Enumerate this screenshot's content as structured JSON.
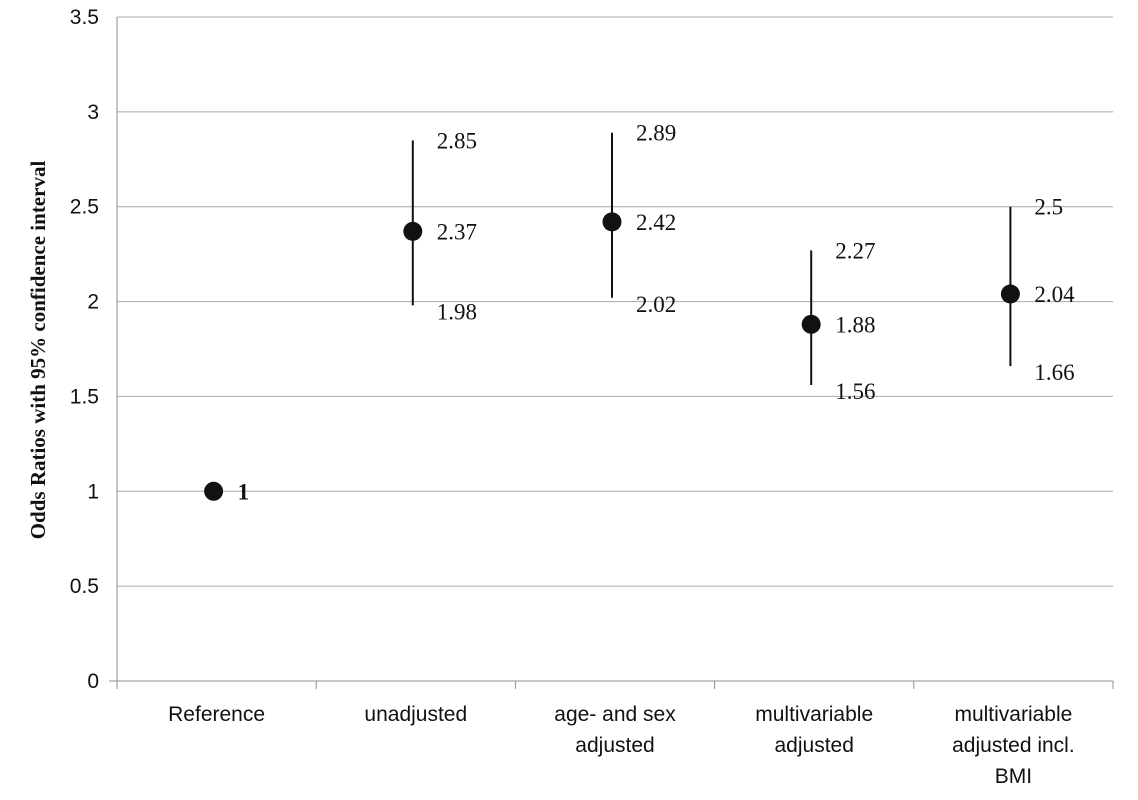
{
  "chart_data": {
    "type": "scatter",
    "ylabel": "Odds Ratios with 95% confidence interval",
    "xlabel": "",
    "ylim": [
      0,
      3.5
    ],
    "yticks": [
      {
        "value": 0,
        "label": "0"
      },
      {
        "value": 0.5,
        "label": "0.5"
      },
      {
        "value": 1,
        "label": "1"
      },
      {
        "value": 1.5,
        "label": "1.5"
      },
      {
        "value": 2,
        "label": "2"
      },
      {
        "value": 2.5,
        "label": "2.5"
      },
      {
        "value": 3,
        "label": "3"
      },
      {
        "value": 3.5,
        "label": "3.5"
      }
    ],
    "grid": true,
    "categories": [
      {
        "lines": [
          "Reference"
        ]
      },
      {
        "lines": [
          "unadjusted"
        ]
      },
      {
        "lines": [
          "age- and sex",
          "adjusted"
        ]
      },
      {
        "lines": [
          "multivariable",
          "adjusted"
        ]
      },
      {
        "lines": [
          "multivariable",
          "adjusted incl.",
          "BMI"
        ]
      }
    ],
    "points": [
      {
        "or": 1,
        "or_label": "1",
        "lower": null,
        "upper": null,
        "lower_label": "",
        "upper_label": ""
      },
      {
        "or": 2.37,
        "or_label": "2.37",
        "lower": 1.98,
        "upper": 2.85,
        "lower_label": "1.98",
        "upper_label": "2.85"
      },
      {
        "or": 2.42,
        "or_label": "2.42",
        "lower": 2.02,
        "upper": 2.89,
        "lower_label": "2.02",
        "upper_label": "2.89"
      },
      {
        "or": 1.88,
        "or_label": "1.88",
        "lower": 1.56,
        "upper": 2.27,
        "lower_label": "1.56",
        "upper_label": "2.27"
      },
      {
        "or": 2.04,
        "or_label": "2.04",
        "lower": 1.66,
        "upper": 2.5,
        "lower_label": "1.66",
        "upper_label": "2.5"
      }
    ]
  }
}
